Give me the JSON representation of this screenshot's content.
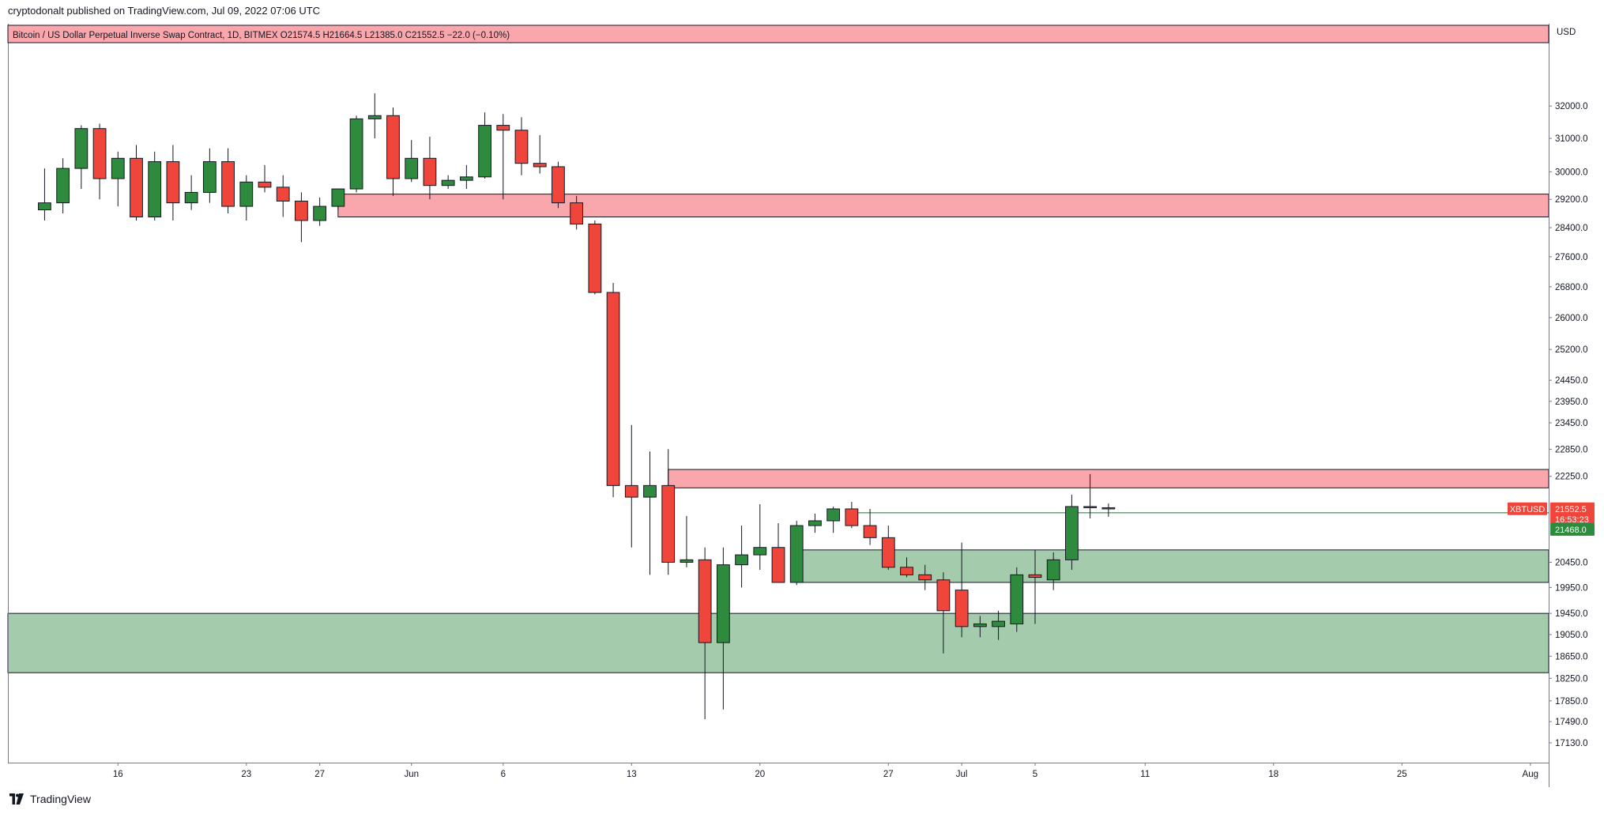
{
  "publisher": {
    "text": "cryptodonalt published on TradingView.com, Jul 09, 2022 07:06 UTC"
  },
  "footer": {
    "brand": "TradingView",
    "logo_icon": "tradingview-logo-icon"
  },
  "colors": {
    "up": "#2e8b3e",
    "down": "#f0453a",
    "resistance_zone": "#f9a7ad",
    "support_zone": "#a5cbad",
    "legend_bg": "#f9a7ad",
    "price_badge": "#f0453a",
    "level_badge": "#2e8b3e"
  },
  "chart_data": {
    "type": "candlestick",
    "legend": {
      "text": "Bitcoin / US Dollar Perpetual Inverse Swap Contract, 1D, BITMEX  O21574.5  H21664.5  L21385.0  C21552.5  −22.0 (−0.10%)"
    },
    "y_axis": {
      "unit_label": "USD",
      "scale": "log",
      "ylim": [
        16800,
        34000
      ],
      "ticks": [
        32000.0,
        31000.0,
        30000.0,
        29200.0,
        28400.0,
        27600.0,
        26800.0,
        26000.0,
        25200.0,
        24450.0,
        23950.0,
        23450.0,
        22850.0,
        22250.0,
        20450.0,
        19950.0,
        19450.0,
        19050.0,
        18650.0,
        18250.0,
        17850.0,
        17490.0,
        17130.0
      ],
      "tick_labels": [
        "32000.0",
        "31000.0",
        "30000.0",
        "29200.0",
        "28400.0",
        "27600.0",
        "26800.0",
        "26000.0",
        "25200.0",
        "24450.0",
        "23950.0",
        "23450.0",
        "22850.0",
        "22250.0",
        "20450.0",
        "19950.0",
        "19450.0",
        "19050.0",
        "18650.0",
        "18250.0",
        "17850.0",
        "17490.0",
        "17130.0"
      ]
    },
    "x_axis": {
      "first_date": "2022-05-10",
      "last_date": "2022-08-02",
      "ticks": [
        {
          "date": "2022-05-16",
          "label": "16"
        },
        {
          "date": "2022-05-23",
          "label": "23"
        },
        {
          "date": "2022-05-27",
          "label": "27"
        },
        {
          "date": "2022-06-01",
          "label": "Jun"
        },
        {
          "date": "2022-06-06",
          "label": "6"
        },
        {
          "date": "2022-06-13",
          "label": "13"
        },
        {
          "date": "2022-06-20",
          "label": "20"
        },
        {
          "date": "2022-06-27",
          "label": "27"
        },
        {
          "date": "2022-07-01",
          "label": "Jul"
        },
        {
          "date": "2022-07-05",
          "label": "5"
        },
        {
          "date": "2022-07-11",
          "label": "11"
        },
        {
          "date": "2022-07-18",
          "label": "18"
        },
        {
          "date": "2022-07-25",
          "label": "25"
        },
        {
          "date": "2022-08-01",
          "label": "Aug"
        }
      ]
    },
    "candles": [
      {
        "date": "2022-05-12",
        "o": 28900,
        "h": 30100,
        "l": 28600,
        "c": 29100
      },
      {
        "date": "2022-05-13",
        "o": 29100,
        "h": 30400,
        "l": 28800,
        "c": 30100
      },
      {
        "date": "2022-05-14",
        "o": 30100,
        "h": 31400,
        "l": 29500,
        "c": 31300
      },
      {
        "date": "2022-05-15",
        "o": 31300,
        "h": 31450,
        "l": 29200,
        "c": 29800
      },
      {
        "date": "2022-05-16",
        "o": 29800,
        "h": 30600,
        "l": 29000,
        "c": 30400
      },
      {
        "date": "2022-05-17",
        "o": 30400,
        "h": 30800,
        "l": 28600,
        "c": 28700
      },
      {
        "date": "2022-05-18",
        "o": 28700,
        "h": 30600,
        "l": 28600,
        "c": 30300
      },
      {
        "date": "2022-05-19",
        "o": 30300,
        "h": 30800,
        "l": 28600,
        "c": 29100
      },
      {
        "date": "2022-05-20",
        "o": 29100,
        "h": 29900,
        "l": 28900,
        "c": 29400
      },
      {
        "date": "2022-05-21",
        "o": 29400,
        "h": 30700,
        "l": 29100,
        "c": 30300
      },
      {
        "date": "2022-05-22",
        "o": 30300,
        "h": 30700,
        "l": 28800,
        "c": 29000
      },
      {
        "date": "2022-05-23",
        "o": 29000,
        "h": 29900,
        "l": 28600,
        "c": 29700
      },
      {
        "date": "2022-05-24",
        "o": 29700,
        "h": 30200,
        "l": 29400,
        "c": 29550
      },
      {
        "date": "2022-05-25",
        "o": 29550,
        "h": 29900,
        "l": 28700,
        "c": 29150
      },
      {
        "date": "2022-05-26",
        "o": 29150,
        "h": 29400,
        "l": 28000,
        "c": 28600
      },
      {
        "date": "2022-05-27",
        "o": 28600,
        "h": 29250,
        "l": 28450,
        "c": 29000
      },
      {
        "date": "2022-05-28",
        "o": 29000,
        "h": 29500,
        "l": 28900,
        "c": 29500
      },
      {
        "date": "2022-05-29",
        "o": 29500,
        "h": 31700,
        "l": 29400,
        "c": 31600
      },
      {
        "date": "2022-05-30",
        "o": 31600,
        "h": 32400,
        "l": 31000,
        "c": 31700
      },
      {
        "date": "2022-05-31",
        "o": 31700,
        "h": 31950,
        "l": 29300,
        "c": 29800
      },
      {
        "date": "2022-06-01",
        "o": 29800,
        "h": 30950,
        "l": 29700,
        "c": 30400
      },
      {
        "date": "2022-06-02",
        "o": 30400,
        "h": 31050,
        "l": 29200,
        "c": 29600
      },
      {
        "date": "2022-06-03",
        "o": 29600,
        "h": 29900,
        "l": 29500,
        "c": 29750
      },
      {
        "date": "2022-06-04",
        "o": 29750,
        "h": 30200,
        "l": 29500,
        "c": 29850
      },
      {
        "date": "2022-06-05",
        "o": 29850,
        "h": 31800,
        "l": 29800,
        "c": 31400
      },
      {
        "date": "2022-06-06",
        "o": 31400,
        "h": 31750,
        "l": 29200,
        "c": 31250
      },
      {
        "date": "2022-06-07",
        "o": 31250,
        "h": 31650,
        "l": 29900,
        "c": 30250
      },
      {
        "date": "2022-06-08",
        "o": 30250,
        "h": 31100,
        "l": 29950,
        "c": 30150
      },
      {
        "date": "2022-06-09",
        "o": 30150,
        "h": 30300,
        "l": 28950,
        "c": 29100
      },
      {
        "date": "2022-06-10",
        "o": 29100,
        "h": 29300,
        "l": 28350,
        "c": 28500
      },
      {
        "date": "2022-06-11",
        "o": 28500,
        "h": 28600,
        "l": 26600,
        "c": 26650
      },
      {
        "date": "2022-06-12",
        "o": 26650,
        "h": 26900,
        "l": 21800,
        "c": 22050
      },
      {
        "date": "2022-06-13",
        "o": 22050,
        "h": 23400,
        "l": 20750,
        "c": 21800
      },
      {
        "date": "2022-06-14",
        "o": 21800,
        "h": 22800,
        "l": 20200,
        "c": 22050
      },
      {
        "date": "2022-06-15",
        "o": 22050,
        "h": 22850,
        "l": 20200,
        "c": 20450
      },
      {
        "date": "2022-06-16",
        "o": 20450,
        "h": 21400,
        "l": 20350,
        "c": 20500
      },
      {
        "date": "2022-06-17",
        "o": 20500,
        "h": 20750,
        "l": 17530,
        "c": 18900
      },
      {
        "date": "2022-06-18",
        "o": 18900,
        "h": 20750,
        "l": 17700,
        "c": 20400
      },
      {
        "date": "2022-06-19",
        "o": 20400,
        "h": 21200,
        "l": 19950,
        "c": 20600
      },
      {
        "date": "2022-06-20",
        "o": 20600,
        "h": 21650,
        "l": 20300,
        "c": 20750
      },
      {
        "date": "2022-06-21",
        "o": 20750,
        "h": 21250,
        "l": 20050,
        "c": 20050
      },
      {
        "date": "2022-06-22",
        "o": 20050,
        "h": 21300,
        "l": 20000,
        "c": 21200
      },
      {
        "date": "2022-06-23",
        "o": 21200,
        "h": 21450,
        "l": 21050,
        "c": 21300
      },
      {
        "date": "2022-06-24",
        "o": 21300,
        "h": 21600,
        "l": 21050,
        "c": 21550
      },
      {
        "date": "2022-06-25",
        "o": 21550,
        "h": 21700,
        "l": 21150,
        "c": 21200
      },
      {
        "date": "2022-06-26",
        "o": 21200,
        "h": 21550,
        "l": 20800,
        "c": 20950
      },
      {
        "date": "2022-06-27",
        "o": 20950,
        "h": 21200,
        "l": 20300,
        "c": 20350
      },
      {
        "date": "2022-06-28",
        "o": 20350,
        "h": 20550,
        "l": 20150,
        "c": 20200
      },
      {
        "date": "2022-06-29",
        "o": 20200,
        "h": 20400,
        "l": 19900,
        "c": 20100
      },
      {
        "date": "2022-06-30",
        "o": 20100,
        "h": 20250,
        "l": 18700,
        "c": 19500
      },
      {
        "date": "2022-07-01",
        "o": 19900,
        "h": 20850,
        "l": 19000,
        "c": 19200
      },
      {
        "date": "2022-07-02",
        "o": 19200,
        "h": 19400,
        "l": 19000,
        "c": 19250
      },
      {
        "date": "2022-07-03",
        "o": 19200,
        "h": 19500,
        "l": 18950,
        "c": 19300
      },
      {
        "date": "2022-07-04",
        "o": 19250,
        "h": 20350,
        "l": 19100,
        "c": 20200
      },
      {
        "date": "2022-07-05",
        "o": 20200,
        "h": 20700,
        "l": 19250,
        "c": 20150
      },
      {
        "date": "2022-07-06",
        "o": 20100,
        "h": 20650,
        "l": 19900,
        "c": 20500
      },
      {
        "date": "2022-07-07",
        "o": 20500,
        "h": 21850,
        "l": 20300,
        "c": 21600
      },
      {
        "date": "2022-07-08",
        "o": 21600,
        "h": 22300,
        "l": 21350,
        "c": 21575
      },
      {
        "date": "2022-07-09",
        "o": 21574.5,
        "h": 21664.5,
        "l": 21385.0,
        "c": 21552.5
      }
    ],
    "zones": [
      {
        "type": "resistance",
        "from_date": "2022-05-28",
        "low": 28700,
        "high": 29350
      },
      {
        "type": "resistance",
        "from_date": "2022-06-15",
        "low": 22000,
        "high": 22400
      },
      {
        "type": "support",
        "from_date": "2022-06-22",
        "low": 20050,
        "high": 20700
      },
      {
        "type": "support",
        "from_date": "2022-05-10",
        "low": 18350,
        "high": 19450
      }
    ],
    "level_lines": [
      {
        "from_date": "2022-06-25",
        "value": 21468.0
      }
    ],
    "price_badge": {
      "symbol": "XBTUSD",
      "price": "21552.5",
      "countdown": "16:53:23",
      "value": 21552.5
    },
    "level_badge": {
      "label": "21468.0",
      "value": 21468.0
    }
  }
}
